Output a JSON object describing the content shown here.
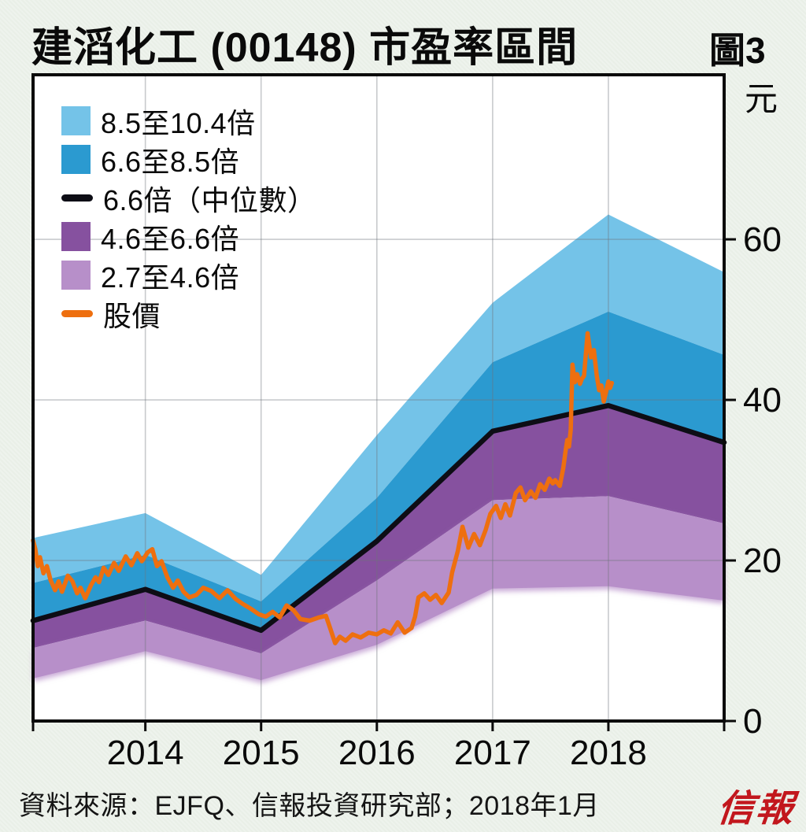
{
  "page": {
    "title": "建滔化工 (00148) 市盈率區間",
    "figure_label": "圖3",
    "source_note": "資料來源：EJFQ、信報投資研究部；2018年1月",
    "brand_logo": "信報",
    "brand_color": "#c2171d",
    "background_color": "#e9efe7"
  },
  "legend": {
    "items": [
      {
        "label": "8.5至10.4倍",
        "type": "box",
        "color": "#74c3e8",
        "name": "legend-band-8.5-10.4"
      },
      {
        "label": "6.6至8.5倍",
        "type": "box",
        "color": "#2b9ad0",
        "name": "legend-band-6.6-8.5"
      },
      {
        "label": "6.6倍（中位數）",
        "type": "line",
        "color": "#0d0d15",
        "name": "legend-median-6.6x"
      },
      {
        "label": "4.6至6.6倍",
        "type": "box",
        "color": "#86519f",
        "name": "legend-band-4.6-6.6"
      },
      {
        "label": "2.7至4.6倍",
        "type": "box",
        "color": "#b78fc9",
        "name": "legend-band-2.7-4.6"
      },
      {
        "label": "股價",
        "type": "line",
        "color": "#ee6f0f",
        "name": "legend-price"
      }
    ]
  },
  "chart_data": {
    "type": "area",
    "title": "建滔化工 (00148) 市盈率區間",
    "unit_label": "元",
    "x_range": [
      2013.03,
      2019.0
    ],
    "y_range": [
      0,
      80.5
    ],
    "x_ticks": [
      2014,
      2015,
      2016,
      2017,
      2018
    ],
    "x_tick_labels": [
      "2014",
      "2015",
      "2016",
      "2017",
      "2018"
    ],
    "y_ticks": [
      0,
      20,
      40,
      60
    ],
    "y_tick_labels": [
      "0",
      "20",
      "40",
      "60"
    ],
    "grid": {
      "vertical_at_years": true,
      "horizontal_at": [
        20,
        40,
        60
      ],
      "color": "#6e747c",
      "opacity": 0.38
    },
    "plot_background": "#ffffff",
    "knots_t": [
      2013.03,
      2014,
      2015,
      2016,
      2017,
      2018,
      2019
    ],
    "boundaries": {
      "top": [
        22.8,
        25.9,
        18.2,
        35.6,
        52.1,
        63.1,
        55.9
      ],
      "b4": [
        17.2,
        20.7,
        14.9,
        27.8,
        44.7,
        51.0,
        45.6
      ],
      "median": [
        12.5,
        16.4,
        11.3,
        22.4,
        36.1,
        39.3,
        34.7
      ],
      "b2": [
        9.1,
        12.5,
        8.4,
        17.5,
        27.5,
        28.0,
        24.6
      ],
      "bottom": [
        5.3,
        8.7,
        5.1,
        9.5,
        16.5,
        16.8,
        15.0
      ]
    },
    "bands": [
      {
        "name": "band-8.5-10.4",
        "label": "8.5至10.4倍",
        "lower": "b4",
        "upper": "top",
        "color": "#74c3e8"
      },
      {
        "name": "band-6.6-8.5",
        "label": "6.6至8.5倍",
        "lower": "median",
        "upper": "b4",
        "color": "#2b9ad0"
      },
      {
        "name": "band-4.6-6.6",
        "label": "4.6至6.6倍",
        "lower": "b2",
        "upper": "median",
        "color": "#86519f"
      },
      {
        "name": "band-2.7-4.6",
        "label": "2.7至4.6倍",
        "lower": "bottom",
        "upper": "b2",
        "color": "#b78fc9",
        "soft_shadow": true
      }
    ],
    "median_line": {
      "label": "6.6倍（中位數）",
      "color": "#0d0d15",
      "width": 6.5
    },
    "price_line": {
      "label": "股價",
      "color": "#ee6f0f",
      "width": 5.5,
      "points": [
        [
          2013.03,
          22.5
        ],
        [
          2013.05,
          21.4
        ],
        [
          2013.07,
          19.3
        ],
        [
          2013.09,
          20.4
        ],
        [
          2013.12,
          18.4
        ],
        [
          2013.15,
          19.3
        ],
        [
          2013.18,
          17.6
        ],
        [
          2013.22,
          16.3
        ],
        [
          2013.25,
          17.4
        ],
        [
          2013.28,
          16.1
        ],
        [
          2013.33,
          18.1
        ],
        [
          2013.37,
          17.4
        ],
        [
          2013.41,
          15.9
        ],
        [
          2013.44,
          16.6
        ],
        [
          2013.48,
          15.3
        ],
        [
          2013.53,
          16.9
        ],
        [
          2013.57,
          17.9
        ],
        [
          2013.6,
          17.3
        ],
        [
          2013.64,
          19.1
        ],
        [
          2013.68,
          18.2
        ],
        [
          2013.73,
          19.7
        ],
        [
          2013.77,
          18.7
        ],
        [
          2013.83,
          20.5
        ],
        [
          2013.88,
          19.4
        ],
        [
          2013.93,
          20.9
        ],
        [
          2013.97,
          19.9
        ],
        [
          2014.02,
          21.0
        ],
        [
          2014.06,
          21.4
        ],
        [
          2014.1,
          19.3
        ],
        [
          2014.14,
          19.9
        ],
        [
          2014.19,
          17.9
        ],
        [
          2014.24,
          16.6
        ],
        [
          2014.28,
          17.5
        ],
        [
          2014.33,
          16.1
        ],
        [
          2014.38,
          15.4
        ],
        [
          2014.44,
          15.7
        ],
        [
          2014.5,
          16.6
        ],
        [
          2014.57,
          16.2
        ],
        [
          2014.64,
          15.3
        ],
        [
          2014.71,
          16.3
        ],
        [
          2014.78,
          15.2
        ],
        [
          2014.84,
          14.6
        ],
        [
          2014.91,
          14.0
        ],
        [
          2014.98,
          13.3
        ],
        [
          2015.04,
          13.0
        ],
        [
          2015.1,
          13.6
        ],
        [
          2015.16,
          12.9
        ],
        [
          2015.22,
          14.4
        ],
        [
          2015.28,
          13.8
        ],
        [
          2015.34,
          12.7
        ],
        [
          2015.42,
          12.5
        ],
        [
          2015.5,
          12.9
        ],
        [
          2015.56,
          13.1
        ],
        [
          2015.6,
          11.4
        ],
        [
          2015.64,
          9.7
        ],
        [
          2015.68,
          10.5
        ],
        [
          2015.73,
          10.0
        ],
        [
          2015.79,
          10.8
        ],
        [
          2015.86,
          10.4
        ],
        [
          2015.93,
          11.0
        ],
        [
          2016.0,
          10.8
        ],
        [
          2016.06,
          11.3
        ],
        [
          2016.12,
          10.9
        ],
        [
          2016.18,
          12.3
        ],
        [
          2016.24,
          11.0
        ],
        [
          2016.3,
          11.6
        ],
        [
          2016.33,
          13.0
        ],
        [
          2016.36,
          15.4
        ],
        [
          2016.41,
          15.9
        ],
        [
          2016.46,
          15.1
        ],
        [
          2016.51,
          15.7
        ],
        [
          2016.56,
          14.7
        ],
        [
          2016.62,
          16.0
        ],
        [
          2016.65,
          18.5
        ],
        [
          2016.7,
          21.2
        ],
        [
          2016.74,
          24.2
        ],
        [
          2016.79,
          21.6
        ],
        [
          2016.84,
          23.3
        ],
        [
          2016.89,
          21.9
        ],
        [
          2016.94,
          23.8
        ],
        [
          2016.98,
          25.8
        ],
        [
          2017.03,
          26.8
        ],
        [
          2017.07,
          25.3
        ],
        [
          2017.11,
          27.0
        ],
        [
          2017.15,
          25.6
        ],
        [
          2017.2,
          28.4
        ],
        [
          2017.24,
          29.1
        ],
        [
          2017.28,
          27.5
        ],
        [
          2017.33,
          28.6
        ],
        [
          2017.37,
          27.8
        ],
        [
          2017.41,
          29.5
        ],
        [
          2017.45,
          28.8
        ],
        [
          2017.49,
          30.2
        ],
        [
          2017.52,
          29.6
        ],
        [
          2017.54,
          30.0
        ],
        [
          2017.58,
          29.3
        ],
        [
          2017.61,
          31.5
        ],
        [
          2017.63,
          33.6
        ],
        [
          2017.645,
          35.0
        ],
        [
          2017.66,
          34.2
        ],
        [
          2017.675,
          36.3
        ],
        [
          2017.69,
          44.4
        ],
        [
          2017.71,
          42.2
        ],
        [
          2017.73,
          43.2
        ],
        [
          2017.755,
          42.0
        ],
        [
          2017.77,
          42.6
        ],
        [
          2017.79,
          43.0
        ],
        [
          2017.82,
          48.3
        ],
        [
          2017.85,
          45.3
        ],
        [
          2017.875,
          46.2
        ],
        [
          2017.9,
          43.0
        ],
        [
          2017.92,
          41.2
        ],
        [
          2017.94,
          41.8
        ],
        [
          2017.96,
          39.8
        ],
        [
          2017.98,
          41.0
        ],
        [
          2018.0,
          42.3
        ],
        [
          2018.015,
          41.5
        ],
        [
          2018.03,
          42.1
        ]
      ]
    }
  }
}
